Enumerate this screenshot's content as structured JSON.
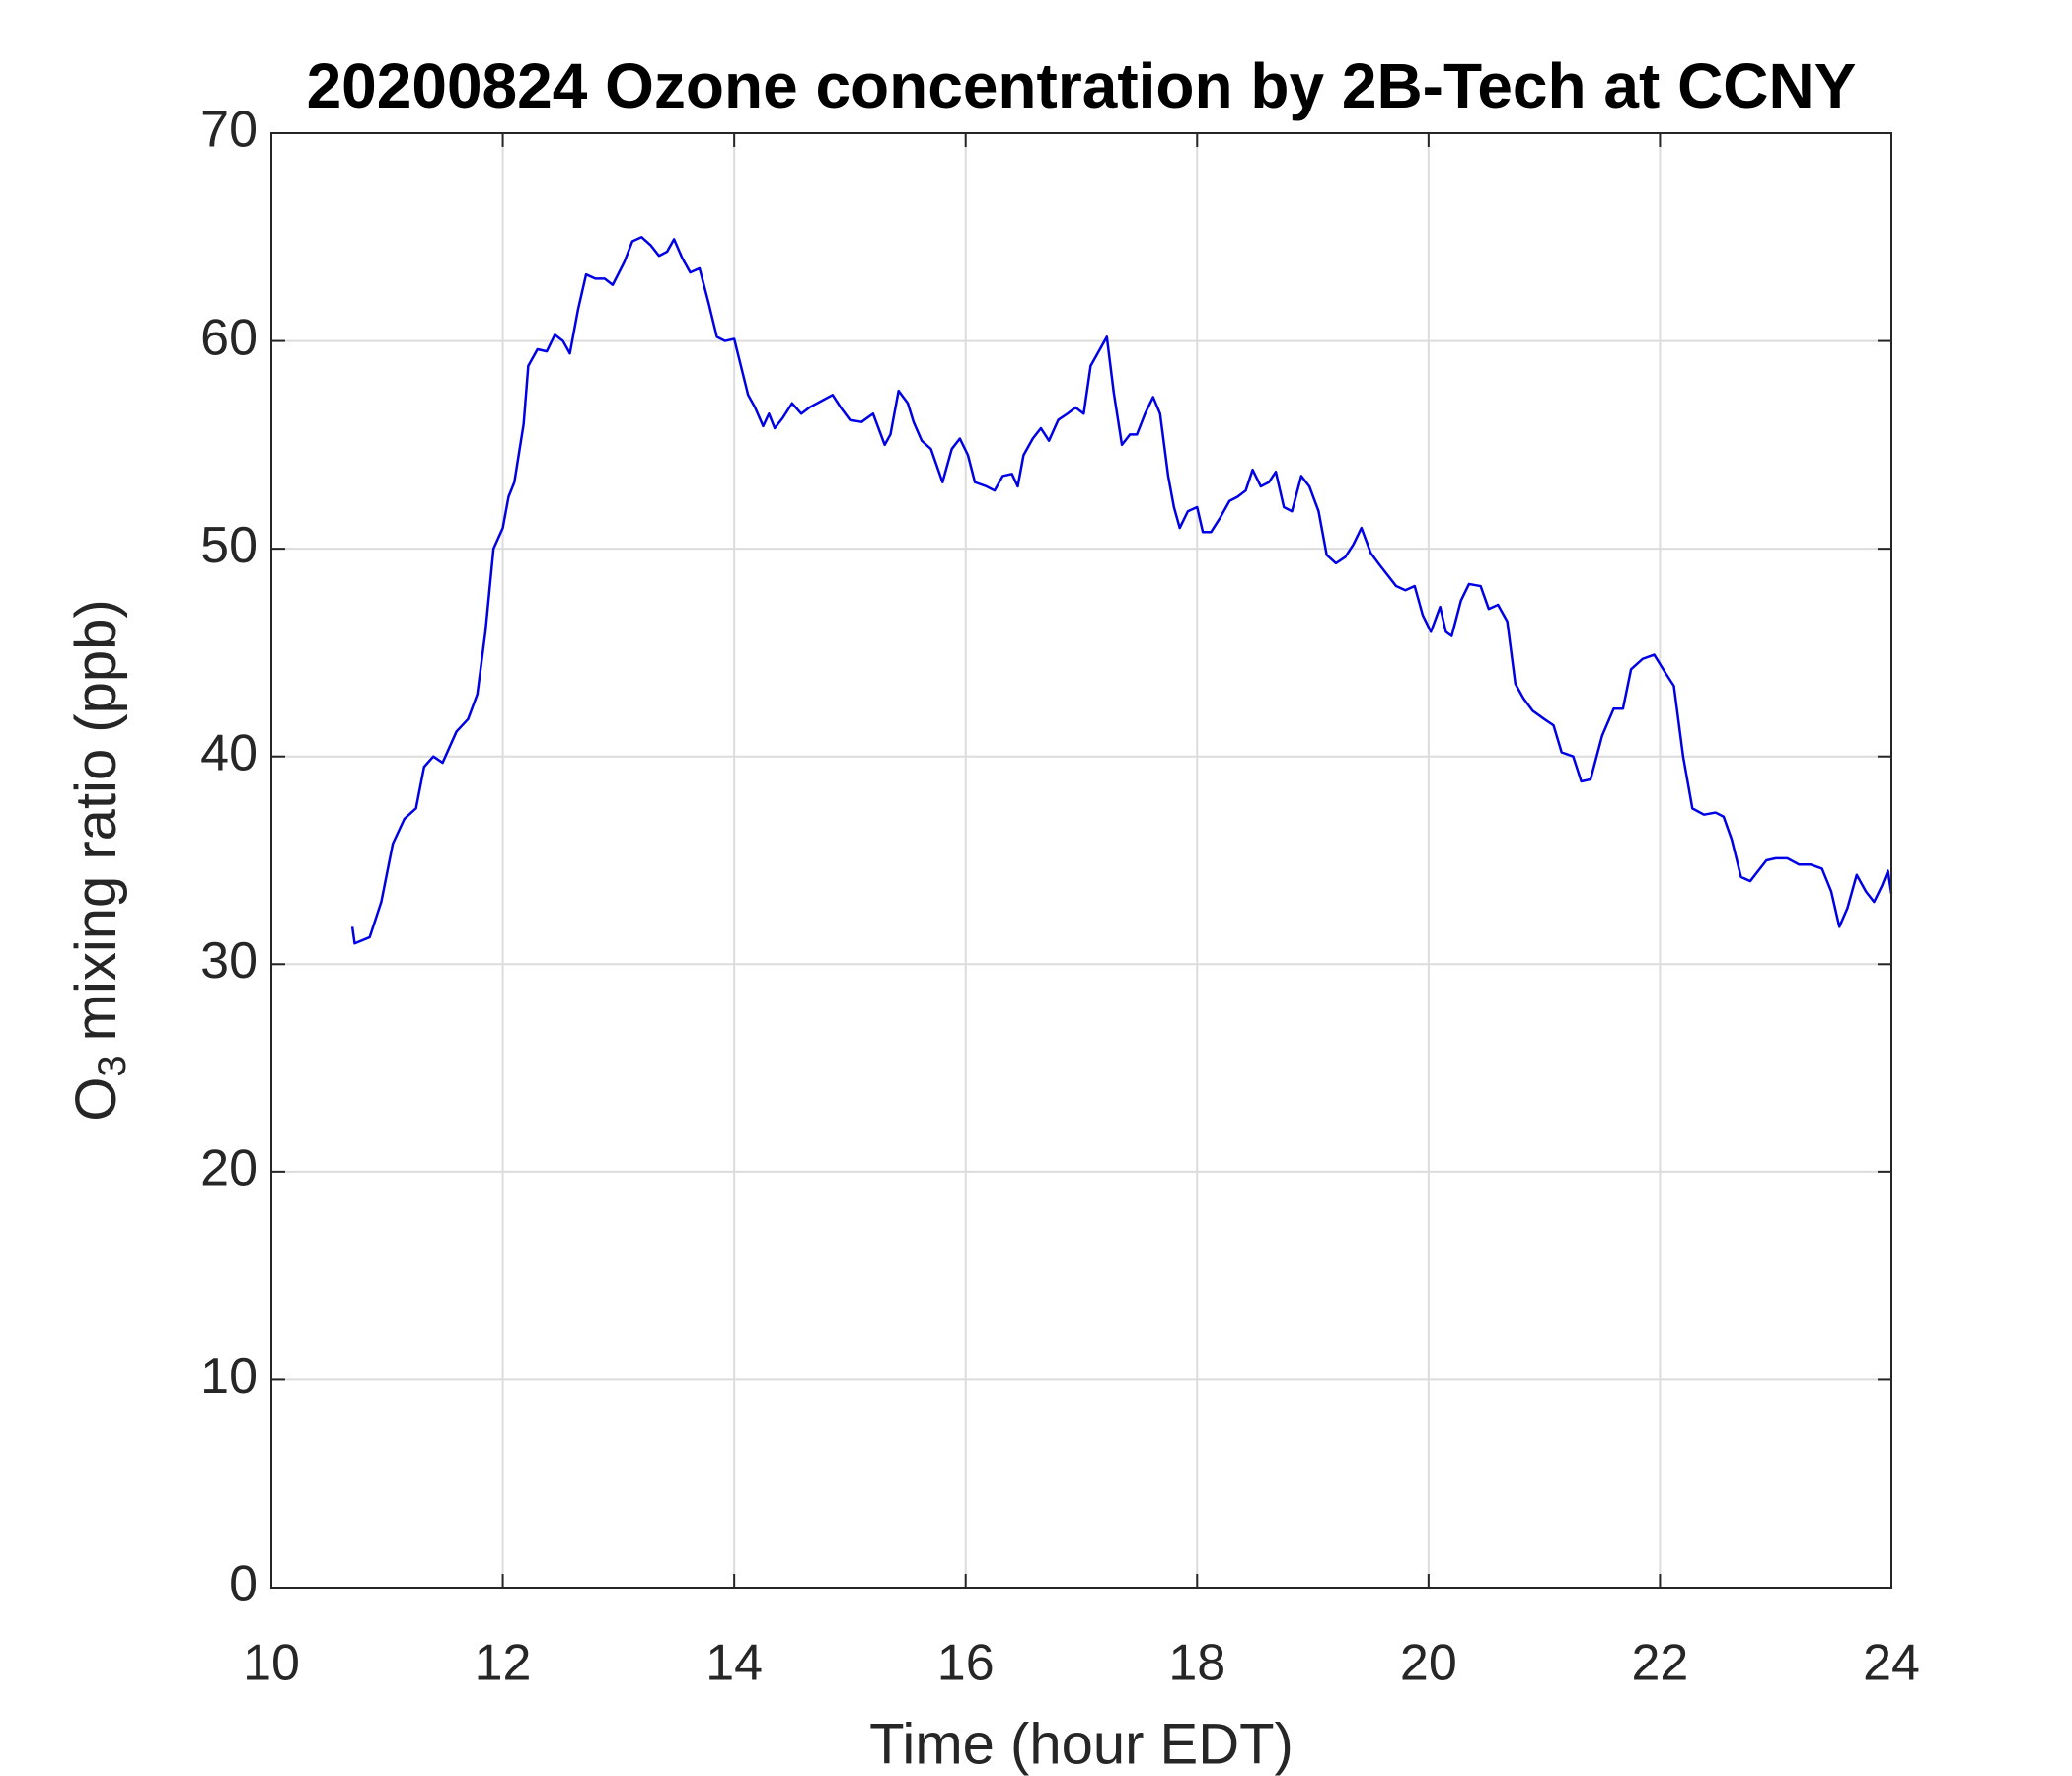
{
  "chart_data": {
    "type": "line",
    "title": "20200824 Ozone concentration by 2B-Tech at CCNY",
    "xlabel": "Time (hour EDT)",
    "ylabel": {
      "base": "O",
      "subscript": "3",
      "text": "mixing ratio (ppb)"
    },
    "xlim": [
      10,
      24
    ],
    "xticks": [
      10,
      12,
      14,
      16,
      18,
      20,
      22,
      24
    ],
    "ylim": [
      0,
      70
    ],
    "yticks": [
      0,
      10,
      20,
      30,
      40,
      50,
      60,
      70
    ],
    "grid": true,
    "x": [
      10.7,
      10.72,
      10.85,
      10.95,
      11.05,
      11.15,
      11.25,
      11.32,
      11.4,
      11.48,
      11.6,
      11.7,
      11.78,
      11.85,
      11.92,
      12.0,
      12.05,
      12.1,
      12.18,
      12.22,
      12.3,
      12.38,
      12.45,
      12.52,
      12.58,
      12.65,
      12.72,
      12.8,
      12.88,
      12.95,
      13.05,
      13.12,
      13.2,
      13.28,
      13.35,
      13.42,
      13.48,
      13.55,
      13.62,
      13.7,
      13.78,
      13.85,
      13.92,
      14.0,
      14.08,
      14.12,
      14.18,
      14.25,
      14.3,
      14.35,
      14.42,
      14.5,
      14.58,
      14.65,
      14.75,
      14.85,
      14.92,
      15.0,
      15.1,
      15.2,
      15.3,
      15.35,
      15.42,
      15.5,
      15.55,
      15.62,
      15.7,
      15.8,
      15.88,
      15.95,
      16.02,
      16.08,
      16.18,
      16.25,
      16.32,
      16.4,
      16.45,
      16.5,
      16.58,
      16.65,
      16.72,
      16.8,
      16.88,
      16.95,
      17.02,
      17.08,
      17.15,
      17.22,
      17.28,
      17.35,
      17.42,
      17.48,
      17.55,
      17.62,
      17.68,
      17.75,
      17.8,
      17.85,
      17.92,
      18.0,
      18.05,
      18.12,
      18.2,
      18.28,
      18.35,
      18.42,
      18.48,
      18.55,
      18.62,
      18.68,
      18.75,
      18.82,
      18.9,
      18.97,
      19.05,
      19.12,
      19.2,
      19.28,
      19.35,
      19.42,
      19.5,
      19.58,
      19.65,
      19.72,
      19.8,
      19.88,
      19.95,
      20.02,
      20.1,
      20.15,
      20.2,
      20.28,
      20.35,
      20.45,
      20.52,
      20.6,
      20.68,
      20.75,
      20.82,
      20.9,
      21.0,
      21.08,
      21.15,
      21.25,
      21.32,
      21.4,
      21.5,
      21.6,
      21.68,
      21.75,
      21.85,
      21.95,
      22.05,
      22.12,
      22.2,
      22.28,
      22.38,
      22.48,
      22.55,
      22.62,
      22.7,
      22.78,
      22.85,
      22.92,
      23.0,
      23.1,
      23.2,
      23.3,
      23.4,
      23.48,
      23.55,
      23.62,
      23.7,
      23.78,
      23.85,
      23.92,
      23.97,
      24.0
    ],
    "series": [
      {
        "color": "#0000e6",
        "values": [
          31.8,
          31.0,
          31.3,
          33,
          35.8,
          37,
          37.5,
          39.5,
          40,
          39.7,
          41.2,
          41.8,
          43,
          46,
          50,
          51,
          52.5,
          53.2,
          56,
          58.8,
          59.6,
          59.5,
          60.3,
          60,
          59.4,
          61.5,
          63.2,
          63,
          63,
          62.7,
          63.8,
          64.8,
          65,
          64.6,
          64.1,
          64.3,
          64.9,
          64,
          63.3,
          63.5,
          61.8,
          60.2,
          60,
          60.1,
          58.3,
          57.4,
          56.8,
          55.9,
          56.5,
          55.8,
          56.3,
          57,
          56.5,
          56.8,
          57.1,
          57.4,
          56.8,
          56.2,
          56.1,
          56.5,
          55,
          55.5,
          57.6,
          57,
          56.1,
          55.2,
          54.8,
          53.2,
          54.8,
          55.3,
          54.5,
          53.2,
          53,
          52.8,
          53.5,
          53.6,
          53,
          54.5,
          55.3,
          55.8,
          55.2,
          56.2,
          56.5,
          56.8,
          56.5,
          58.8,
          59.5,
          60.2,
          57.5,
          55,
          55.5,
          55.5,
          56.5,
          57.3,
          56.5,
          53.5,
          52,
          51,
          51.8,
          52,
          50.8,
          50.8,
          51.5,
          52.3,
          52.5,
          52.8,
          53.8,
          53,
          53.2,
          53.7,
          52,
          51.8,
          53.5,
          53,
          51.8,
          49.7,
          49.3,
          49.6,
          50.2,
          51,
          49.8,
          49.2,
          48.7,
          48.2,
          48,
          48.2,
          46.8,
          46,
          47.2,
          46,
          45.8,
          47.5,
          48.3,
          48.2,
          47.1,
          47.3,
          46.5,
          43.5,
          42.8,
          42.2,
          41.8,
          41.5,
          40.2,
          40,
          38.8,
          38.9,
          41,
          42.3,
          42.3,
          44.2,
          44.7,
          44.9,
          44,
          43.4,
          40,
          37.5,
          37.2,
          37.3,
          37.1,
          36,
          34.2,
          34,
          34.5,
          35,
          35.1,
          35.1,
          34.8,
          34.8,
          34.6,
          33.5,
          31.8,
          32.7,
          34.3,
          33.5,
          33,
          33.8,
          34.5,
          33.4
        ]
      }
    ]
  }
}
